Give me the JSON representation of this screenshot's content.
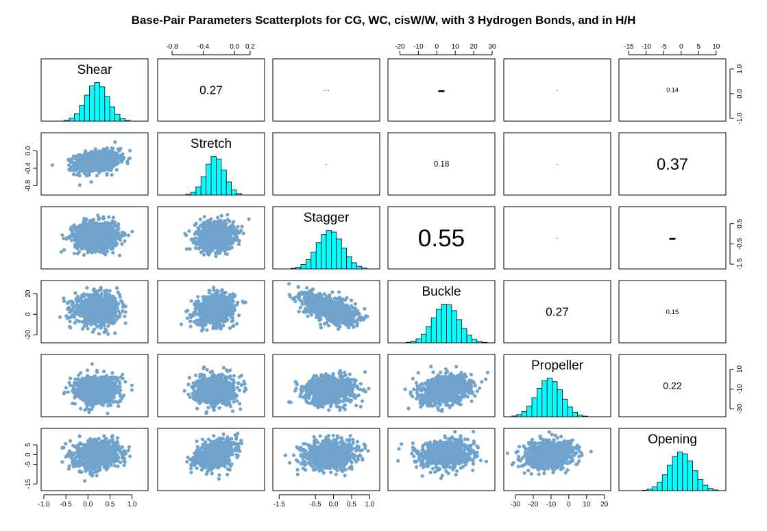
{
  "chart_data": {
    "type": "scatter",
    "title": "Base-Pair Parameters Scatterplots for CG, WC, cisW/W, with 3 Hydrogen Bonds, and in H/H",
    "variables": [
      "Shear",
      "Stretch",
      "Stagger",
      "Buckle",
      "Propeller",
      "Opening"
    ],
    "ranges": [
      [
        -1.0,
        1.3
      ],
      [
        -0.95,
        0.35
      ],
      [
        -1.6,
        1.2
      ],
      [
        -25,
        30
      ],
      [
        -35,
        22
      ],
      [
        -17,
        12
      ]
    ],
    "means": [
      0.2,
      -0.25,
      -0.1,
      5,
      -11,
      0
    ],
    "sds": [
      0.25,
      0.12,
      0.35,
      7,
      7,
      3.5
    ],
    "correlations": [
      {
        "row": 1,
        "col": 2,
        "label": "0.27"
      },
      {
        "row": 1,
        "col": 3,
        "label": "···"
      },
      {
        "row": 1,
        "col": 4,
        "label": "▬"
      },
      {
        "row": 1,
        "col": 5,
        "label": "·"
      },
      {
        "row": 1,
        "col": 6,
        "label": "0.14"
      },
      {
        "row": 2,
        "col": 3,
        "label": "·"
      },
      {
        "row": 2,
        "col": 4,
        "label": "0.18"
      },
      {
        "row": 2,
        "col": 5,
        "label": "·"
      },
      {
        "row": 2,
        "col": 6,
        "label": "0.37"
      },
      {
        "row": 3,
        "col": 4,
        "label": "0.55"
      },
      {
        "row": 3,
        "col": 5,
        "label": "·"
      },
      {
        "row": 3,
        "col": 6,
        "label": "▬"
      },
      {
        "row": 4,
        "col": 5,
        "label": "0.27"
      },
      {
        "row": 4,
        "col": 6,
        "label": "0.15"
      },
      {
        "row": 5,
        "col": 6,
        "label": "0.22"
      }
    ],
    "axis_ticks": {
      "top": [
        {
          "col": 2,
          "ticks": [
            "-0.8",
            "-0.4",
            "0.0",
            "0.2"
          ],
          "values": [
            -0.8,
            -0.4,
            0.0,
            0.2
          ]
        },
        {
          "col": 4,
          "ticks": [
            "-20",
            "-10",
            "0",
            "10",
            "20",
            "30"
          ],
          "values": [
            -20,
            -10,
            0,
            10,
            20,
            30
          ]
        },
        {
          "col": 6,
          "ticks": [
            "-15",
            "-10",
            "-5",
            "0",
            "5",
            "10"
          ],
          "values": [
            -15,
            -10,
            -5,
            0,
            5,
            10
          ]
        }
      ],
      "bottom": [
        {
          "col": 1,
          "ticks": [
            "-1.0",
            "-0.5",
            "0.0",
            "0.5",
            "1.0"
          ],
          "values": [
            -1.0,
            -0.5,
            0.0,
            0.5,
            1.0
          ]
        },
        {
          "col": 3,
          "ticks": [
            "-1.5",
            "-0.5",
            "0.0",
            "0.5",
            "1.0"
          ],
          "values": [
            -1.5,
            -0.5,
            0.0,
            0.5,
            1.0
          ]
        },
        {
          "col": 5,
          "ticks": [
            "-30",
            "-20",
            "-10",
            "0",
            "10",
            "20"
          ],
          "values": [
            -30,
            -20,
            -10,
            0,
            10,
            20
          ]
        }
      ],
      "left": [
        {
          "row": 2,
          "ticks": [
            "0.0",
            "-0.4",
            "-0.8"
          ],
          "values": [
            0.0,
            -0.4,
            -0.8
          ]
        },
        {
          "row": 4,
          "ticks": [
            "20",
            "0",
            "-20"
          ],
          "values": [
            20,
            0,
            -20
          ]
        },
        {
          "row": 6,
          "ticks": [
            "5",
            "0",
            "-5",
            "-15"
          ],
          "values": [
            5,
            0,
            -5,
            -15
          ]
        }
      ],
      "right": [
        {
          "row": 1,
          "ticks": [
            "1.0",
            "0.0",
            "-1.0"
          ],
          "values": [
            1.0,
            0.0,
            -1.0
          ]
        },
        {
          "row": 3,
          "ticks": [
            "0.5",
            "-0.5",
            "-1.5"
          ],
          "values": [
            0.5,
            -0.5,
            -1.5
          ]
        },
        {
          "row": 5,
          "ticks": [
            "10",
            "-10",
            "-30"
          ],
          "values": [
            10,
            -10,
            -30
          ]
        }
      ]
    },
    "histogram_color": "#00FFFF",
    "point_color": "#6FA3CC",
    "grid": false
  }
}
